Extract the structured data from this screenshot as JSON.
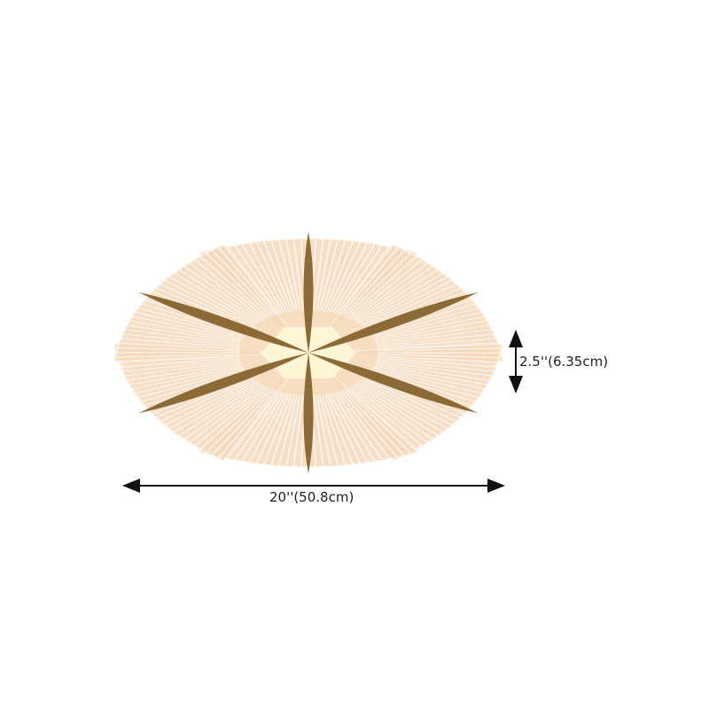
{
  "dimensions": {
    "width_label": "20''(50.8cm)",
    "height_label": "2.5''(6.35cm)"
  },
  "colors": {
    "petal": "#f6d9bd",
    "petal_stripe": "#ffffff",
    "spoke": "#8c6a35",
    "glow": "#fff6d6",
    "arrow": "#111111"
  },
  "product": {
    "petal_count": 6,
    "spoke_count": 6
  }
}
